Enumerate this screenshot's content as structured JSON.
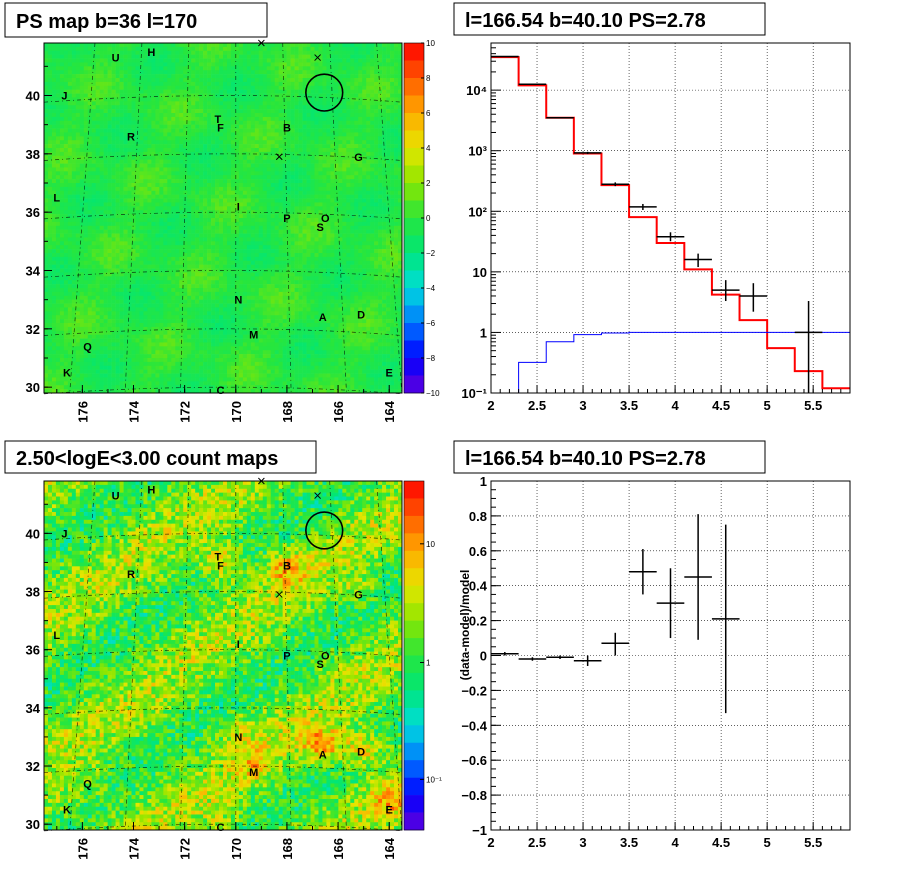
{
  "chart_data": [
    {
      "type": "heatmap",
      "title": "PS map b=36 l=170",
      "x_ticks": [
        "176",
        "174",
        "172",
        "170",
        "168",
        "166",
        "164"
      ],
      "y_ticks": [
        "30",
        "32",
        "34",
        "36",
        "38",
        "40"
      ],
      "xlim": [
        177.5,
        163.5
      ],
      "ylim": [
        29.8,
        41.8
      ],
      "colorbar": {
        "scale": "linear",
        "range": [
          -10,
          10
        ],
        "ticks": [
          "10",
          "8",
          "6",
          "4",
          "2",
          "0",
          "−2",
          "−4",
          "−6",
          "−8",
          "−10"
        ]
      },
      "sources": [
        {
          "label": "U",
          "l": 174.7,
          "b": 41.3
        },
        {
          "label": "H",
          "l": 173.3,
          "b": 41.5
        },
        {
          "label": "J",
          "l": 176.7,
          "b": 40.0
        },
        {
          "label": "R",
          "l": 174.1,
          "b": 38.6
        },
        {
          "label": "T",
          "l": 170.7,
          "b": 39.2
        },
        {
          "label": "F",
          "l": 170.6,
          "b": 38.9
        },
        {
          "label": "B",
          "l": 168.0,
          "b": 38.9
        },
        {
          "label": "G",
          "l": 165.2,
          "b": 37.9
        },
        {
          "label": "L",
          "l": 177.0,
          "b": 36.5
        },
        {
          "label": "I",
          "l": 169.9,
          "b": 36.2
        },
        {
          "label": "P",
          "l": 168.0,
          "b": 35.8
        },
        {
          "label": "O",
          "l": 166.5,
          "b": 35.8
        },
        {
          "label": "S",
          "l": 166.7,
          "b": 35.5
        },
        {
          "label": "N",
          "l": 169.9,
          "b": 33.0
        },
        {
          "label": "A",
          "l": 166.6,
          "b": 32.4
        },
        {
          "label": "D",
          "l": 165.1,
          "b": 32.5
        },
        {
          "label": "M",
          "l": 169.3,
          "b": 31.8
        },
        {
          "label": "Q",
          "l": 175.8,
          "b": 31.4
        },
        {
          "label": "K",
          "l": 176.6,
          "b": 30.5
        },
        {
          "label": "E",
          "l": 164.0,
          "b": 30.5
        },
        {
          "label": "C",
          "l": 170.6,
          "b": 29.9
        }
      ],
      "x_markers": [
        {
          "l": 169.0,
          "b": 41.8
        },
        {
          "l": 166.8,
          "b": 41.3
        },
        {
          "l": 168.3,
          "b": 37.9
        }
      ],
      "circle": {
        "l": 166.54,
        "b": 40.1,
        "radius_deg": 0.6
      }
    },
    {
      "type": "line",
      "title": "l=166.54 b=40.10 PS=2.78",
      "xlim": [
        2,
        5.9
      ],
      "ylim": [
        0.1,
        60000
      ],
      "yscale": "log",
      "x_ticks": [
        "2",
        "2.5",
        "3",
        "3.5",
        "4",
        "4.5",
        "5",
        "5.5"
      ],
      "y_ticks": [
        "10⁻¹",
        "1",
        "10",
        "10²",
        "10³",
        "10⁴"
      ],
      "grid": true,
      "series": [
        {
          "kind": "step",
          "color": "#ff0000",
          "edges": [
            2.0,
            2.3,
            2.6,
            2.9,
            3.2,
            3.5,
            3.8,
            4.1,
            4.4,
            4.7,
            5.0,
            5.3,
            5.6,
            5.9
          ],
          "values": [
            35000,
            12000,
            3500,
            900,
            270,
            80,
            30,
            11,
            4.2,
            1.6,
            0.55,
            0.23,
            0.12
          ]
        },
        {
          "kind": "step",
          "color": "#0000ff",
          "edges": [
            2.0,
            2.3,
            2.6,
            2.9,
            3.2,
            3.5,
            3.8,
            4.1,
            4.4,
            4.7,
            5.0,
            5.3,
            5.6,
            5.9
          ],
          "values": [
            0.05,
            0.32,
            0.7,
            0.92,
            0.98,
            1.0,
            1.0,
            1.0,
            1.0,
            1.0,
            1.0,
            1.0,
            1.0
          ]
        },
        {
          "kind": "errorbar",
          "color": "#000000",
          "points": [
            {
              "x": 2.15,
              "y": 36000,
              "xerr": 0.15,
              "lo": 35500,
              "hi": 36500
            },
            {
              "x": 2.45,
              "y": 12500,
              "xerr": 0.15,
              "lo": 12300,
              "hi": 12700
            },
            {
              "x": 2.75,
              "y": 3500,
              "xerr": 0.15,
              "lo": 3430,
              "hi": 3570
            },
            {
              "x": 3.05,
              "y": 920,
              "xerr": 0.15,
              "lo": 880,
              "hi": 960
            },
            {
              "x": 3.35,
              "y": 280,
              "xerr": 0.15,
              "lo": 260,
              "hi": 300
            },
            {
              "x": 3.65,
              "y": 118,
              "xerr": 0.15,
              "lo": 105,
              "hi": 132
            },
            {
              "x": 3.95,
              "y": 38,
              "xerr": 0.15,
              "lo": 32,
              "hi": 45
            },
            {
              "x": 4.25,
              "y": 16,
              "xerr": 0.15,
              "lo": 12,
              "hi": 20
            },
            {
              "x": 4.55,
              "y": 5,
              "xerr": 0.15,
              "lo": 3.3,
              "hi": 7.3
            },
            {
              "x": 4.85,
              "y": 4,
              "xerr": 0.15,
              "lo": 2.2,
              "hi": 6.5
            },
            {
              "x": 5.45,
              "y": 1,
              "xerr": 0.15,
              "lo": 0.1,
              "hi": 3.3
            }
          ]
        }
      ]
    },
    {
      "type": "heatmap",
      "title": "2.50<logE<3.00 count maps",
      "x_ticks": [
        "176",
        "174",
        "172",
        "170",
        "168",
        "166",
        "164"
      ],
      "y_ticks": [
        "30",
        "32",
        "34",
        "36",
        "38",
        "40"
      ],
      "xlim": [
        177.5,
        163.5
      ],
      "ylim": [
        29.8,
        41.8
      ],
      "colorbar": {
        "scale": "log",
        "ticks": [
          "10",
          "1",
          "10⁻¹"
        ]
      },
      "hot_spots": [
        {
          "label": "A",
          "l": 166.6,
          "b": 32.7,
          "strength": 1.0
        },
        {
          "label": "D",
          "l": 165.0,
          "b": 32.6,
          "strength": 0.8
        },
        {
          "label": "F",
          "l": 170.6,
          "b": 39.0,
          "strength": 0.85
        },
        {
          "label": "B",
          "l": 168.0,
          "b": 38.8,
          "strength": 0.75
        },
        {
          "label": "E",
          "l": 164.0,
          "b": 30.8,
          "strength": 0.6
        },
        {
          "label": "M",
          "l": 169.2,
          "b": 32.0,
          "strength": 0.45
        },
        {
          "label": "N",
          "l": 169.9,
          "b": 33.2,
          "strength": 0.35
        },
        {
          "label": "K",
          "l": 177.0,
          "b": 30.8,
          "strength": 0.35
        },
        {
          "label": "Q",
          "l": 175.7,
          "b": 31.4,
          "strength": 0.3
        },
        {
          "label": "C",
          "l": 170.5,
          "b": 30.2,
          "strength": 0.3
        },
        {
          "label": "G",
          "l": 165.2,
          "b": 38.0,
          "strength": 0.3
        }
      ]
    },
    {
      "type": "scatter",
      "title": "l=166.54 b=40.10 PS=2.78",
      "ylabel": "(data-model)/model",
      "xlim": [
        2,
        5.9
      ],
      "ylim": [
        -1,
        1
      ],
      "x_ticks": [
        "2",
        "2.5",
        "3",
        "3.5",
        "4",
        "4.5",
        "5",
        "5.5"
      ],
      "y_ticks": [
        "−1",
        "−0.8",
        "−0.6",
        "−0.4",
        "−0.2",
        "0",
        "0.2",
        "0.4",
        "0.6",
        "0.8",
        "1"
      ],
      "grid": true,
      "points": [
        {
          "x": 2.15,
          "y": 0.01,
          "xerr": 0.15,
          "lo": 0.0,
          "hi": 0.02
        },
        {
          "x": 2.45,
          "y": -0.02,
          "xerr": 0.15,
          "lo": -0.03,
          "hi": -0.01
        },
        {
          "x": 2.75,
          "y": -0.01,
          "xerr": 0.15,
          "lo": -0.02,
          "hi": 0.0
        },
        {
          "x": 3.05,
          "y": -0.03,
          "xerr": 0.15,
          "lo": -0.06,
          "hi": 0.0
        },
        {
          "x": 3.35,
          "y": 0.07,
          "xerr": 0.15,
          "lo": 0.0,
          "hi": 0.13
        },
        {
          "x": 3.65,
          "y": 0.48,
          "xerr": 0.15,
          "lo": 0.35,
          "hi": 0.61
        },
        {
          "x": 3.95,
          "y": 0.3,
          "xerr": 0.15,
          "lo": 0.1,
          "hi": 0.5
        },
        {
          "x": 4.25,
          "y": 0.45,
          "xerr": 0.15,
          "lo": 0.09,
          "hi": 0.81
        },
        {
          "x": 4.55,
          "y": 0.21,
          "xerr": 0.15,
          "lo": -0.33,
          "hi": 0.75
        }
      ]
    }
  ]
}
